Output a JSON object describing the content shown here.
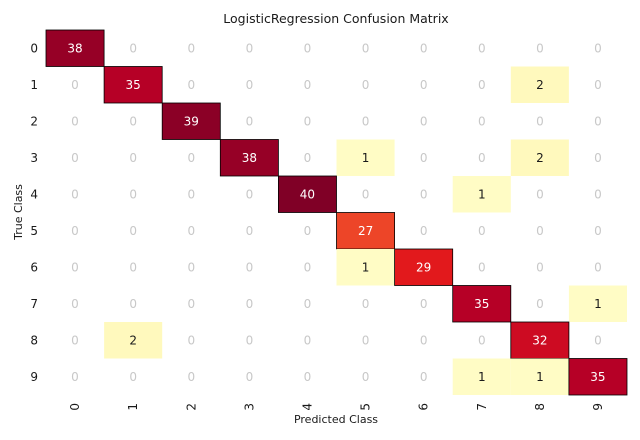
{
  "chart_data": {
    "type": "heatmap",
    "title": "LogisticRegression Confusion Matrix",
    "xlabel": "Predicted Class",
    "ylabel": "True Class",
    "x_categories": [
      "0",
      "1",
      "2",
      "3",
      "4",
      "5",
      "6",
      "7",
      "8",
      "9"
    ],
    "y_categories": [
      "0",
      "1",
      "2",
      "3",
      "4",
      "5",
      "6",
      "7",
      "8",
      "9"
    ],
    "matrix": [
      [
        38,
        0,
        0,
        0,
        0,
        0,
        0,
        0,
        0,
        0
      ],
      [
        0,
        35,
        0,
        0,
        0,
        0,
        0,
        0,
        2,
        0
      ],
      [
        0,
        0,
        39,
        0,
        0,
        0,
        0,
        0,
        0,
        0
      ],
      [
        0,
        0,
        0,
        38,
        0,
        1,
        0,
        0,
        2,
        0
      ],
      [
        0,
        0,
        0,
        0,
        40,
        0,
        0,
        1,
        0,
        0
      ],
      [
        0,
        0,
        0,
        0,
        0,
        27,
        0,
        0,
        0,
        0
      ],
      [
        0,
        0,
        0,
        0,
        0,
        1,
        29,
        0,
        0,
        0
      ],
      [
        0,
        0,
        0,
        0,
        0,
        0,
        0,
        35,
        0,
        1
      ],
      [
        0,
        2,
        0,
        0,
        0,
        0,
        0,
        0,
        32,
        0
      ],
      [
        0,
        0,
        0,
        0,
        0,
        0,
        0,
        1,
        1,
        35
      ]
    ],
    "colormap": "YlOrRd"
  }
}
